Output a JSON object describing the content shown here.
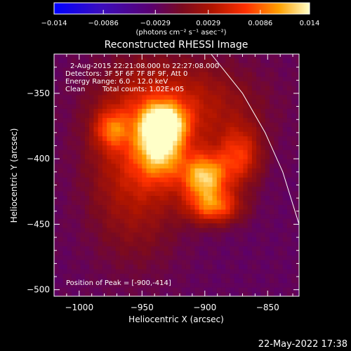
{
  "chart_data": {
    "type": "heatmap",
    "title": "Reconstructed RHESSI Image",
    "xlabel": "Heliocentric X (arcsec)",
    "ylabel": "Heliocentric Y (arcsec)",
    "xlim": [
      -1020,
      -825
    ],
    "ylim": [
      -505,
      -320
    ],
    "xticks": [
      -1000,
      -950,
      -900,
      -850
    ],
    "yticks": [
      -350,
      -400,
      -450,
      -500
    ],
    "colorbar": {
      "label": "(photons cm⁻² s⁻¹ asec⁻²)",
      "min": -0.014,
      "max": 0.014,
      "ticks": [
        -0.014,
        -0.0086,
        -0.0029,
        0.0029,
        0.0086,
        0.014
      ],
      "tick_labels": [
        "−0.014",
        "−0.0086",
        "−0.0029",
        "0.0029",
        "0.0086",
        "0.014"
      ]
    },
    "annotations": {
      "time_range": "2-Aug-2015 22:21:08.000 to 22:27:08.000",
      "detectors": "Detectors: 3F 5F 6F 7F 8F 9F, Att 0",
      "energy": "Energy Range: 6.0 - 12.0 keV",
      "method": "Clean",
      "counts": "Total counts: 1.02E+05",
      "peak": "Position of Peak = [-900,-414]"
    },
    "peak": {
      "x": -900,
      "y": -414
    },
    "sources": [
      {
        "x": -900,
        "y": -414,
        "amp": 0.0135,
        "sx": 13,
        "sy": 13
      },
      {
        "x": -935,
        "y": -390,
        "amp": 0.0105,
        "sx": 13,
        "sy": 18
      },
      {
        "x": -932,
        "y": -372,
        "amp": 0.0085,
        "sx": 12,
        "sy": 10
      },
      {
        "x": -892,
        "y": -437,
        "amp": 0.0095,
        "sx": 15,
        "sy": 9
      },
      {
        "x": -872,
        "y": -398,
        "amp": 0.008,
        "sx": 12,
        "sy": 16
      },
      {
        "x": -975,
        "y": -377,
        "amp": 0.0065,
        "sx": 9,
        "sy": 10
      },
      {
        "x": -955,
        "y": -405,
        "amp": 0.007,
        "sx": 26,
        "sy": 45
      },
      {
        "x": -915,
        "y": -360,
        "amp": 0.006,
        "sx": 40,
        "sy": 25
      }
    ],
    "limb_arc": [
      [
        -895,
        -320
      ],
      [
        -870,
        -350
      ],
      [
        -852,
        -380
      ],
      [
        -838,
        -410
      ],
      [
        -825,
        -450
      ]
    ],
    "footer_date": "22-May-2022 17:38"
  }
}
